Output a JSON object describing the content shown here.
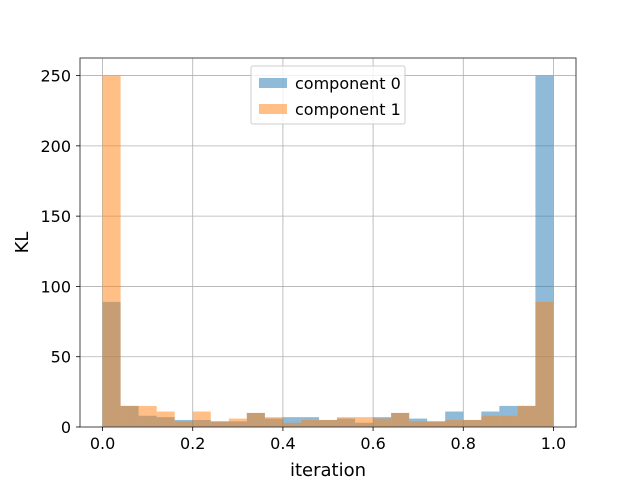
{
  "chart_data": {
    "type": "bar",
    "title": "",
    "xlabel": "iteration",
    "ylabel": "KL",
    "xlim": [
      -0.05,
      1.05
    ],
    "ylim": [
      0,
      262.5
    ],
    "xticks": [
      0.0,
      0.2,
      0.4,
      0.6,
      0.8,
      1.0
    ],
    "xtick_labels": [
      "0.0",
      "0.2",
      "0.4",
      "0.6",
      "0.8",
      "1.0"
    ],
    "yticks": [
      0,
      50,
      100,
      150,
      200,
      250
    ],
    "ytick_labels": [
      "0",
      "50",
      "100",
      "150",
      "200",
      "250"
    ],
    "grid": true,
    "legend_position": "top-center",
    "bin_edges": [
      0.0,
      0.04,
      0.08,
      0.12,
      0.16,
      0.2,
      0.24,
      0.28,
      0.32,
      0.36,
      0.4,
      0.44,
      0.48,
      0.52,
      0.56,
      0.6,
      0.64,
      0.68,
      0.72,
      0.76,
      0.8,
      0.84,
      0.88,
      0.92,
      0.96,
      1.0
    ],
    "series": [
      {
        "name": "component 0",
        "color": "#1f77b4",
        "opacity": 0.5,
        "values": [
          89,
          15,
          8,
          7,
          5,
          5,
          4,
          4,
          10,
          6,
          7,
          7,
          5,
          6,
          3,
          7,
          10,
          6,
          4,
          11,
          5,
          11,
          15,
          15,
          250
        ]
      },
      {
        "name": "component 1",
        "color": "#ff7f0e",
        "opacity": 0.5,
        "values": [
          250,
          15,
          15,
          11,
          4,
          11,
          4,
          6,
          10,
          7,
          3,
          5,
          5,
          7,
          7,
          6,
          10,
          4,
          4,
          5,
          5,
          8,
          8,
          15,
          89
        ]
      }
    ]
  }
}
